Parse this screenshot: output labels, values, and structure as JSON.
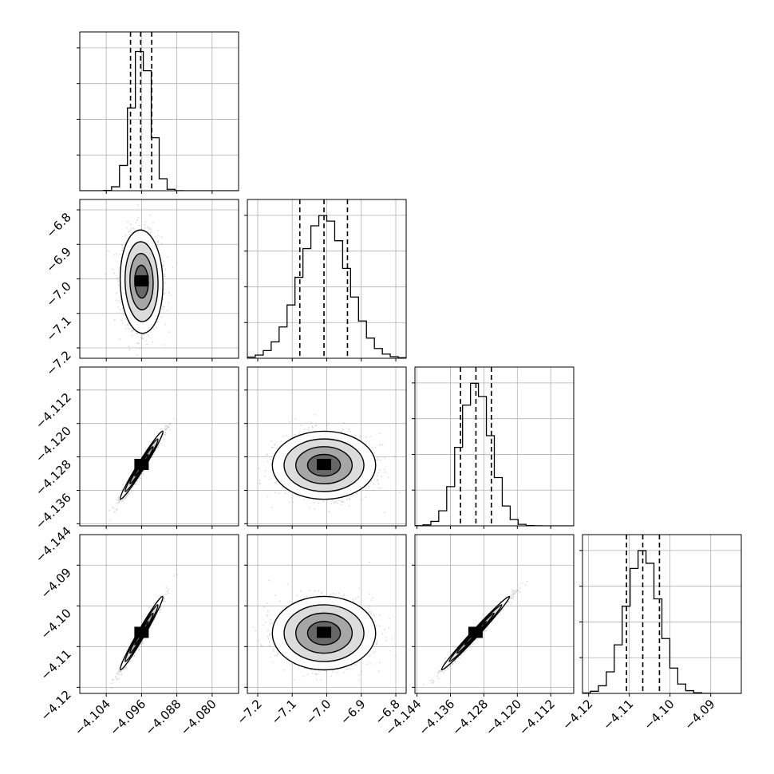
{
  "chart_data": {
    "type": "corner",
    "title": "",
    "grid": true,
    "parameters": 4,
    "colors": {
      "line": "#000000",
      "grid": "#b0b0b0",
      "scatter": "#7f7f7f"
    },
    "axes": [
      {
        "range": [
          -4.11,
          -4.074
        ],
        "ticks": [
          -4.104,
          -4.096,
          -4.088,
          -4.08
        ],
        "tick_labels": [
          "−4.104",
          "−4.096",
          "−4.088",
          "−4.080"
        ]
      },
      {
        "range": [
          -7.23,
          -6.77
        ],
        "ticks": [
          -7.2,
          -7.1,
          -7.0,
          -6.9,
          -6.8
        ],
        "tick_labels": [
          "−7.2",
          "−7.1",
          "−7.0",
          "−6.9",
          "−6.8"
        ]
      },
      {
        "range": [
          -4.1445,
          -4.1065
        ],
        "ticks": [
          -4.144,
          -4.136,
          -4.128,
          -4.12,
          -4.112
        ],
        "tick_labels": [
          "−4.144",
          "−4.136",
          "−4.128",
          "−4.120",
          "−4.112"
        ]
      },
      {
        "range": [
          -4.1215,
          -4.0825
        ],
        "ticks": [
          -4.12,
          -4.11,
          -4.1,
          -4.09
        ],
        "tick_labels": [
          "−4.12",
          "−4.11",
          "−4.10",
          "−4.09"
        ]
      }
    ],
    "marginals": [
      {
        "param": 0,
        "quantiles": [
          -4.0985,
          -4.0962,
          -4.0937
        ],
        "mean": -4.096,
        "sd": 0.0022
      },
      {
        "param": 1,
        "quantiles": [
          -7.078,
          -7.008,
          -6.94
        ],
        "mean": -7.008,
        "sd": 0.068
      },
      {
        "param": 2,
        "quantiles": [
          -4.1336,
          -4.1299,
          -4.1262
        ],
        "mean": -4.13,
        "sd": 0.0037
      },
      {
        "param": 3,
        "quantiles": [
          -4.1107,
          -4.1067,
          -4.1026
        ],
        "mean": -4.1067,
        "sd": 0.0041
      }
    ],
    "correlations": {
      "1,0": -0.05,
      "2,0": 0.98,
      "2,1": 0.0,
      "3,0": 0.98,
      "3,1": 0.0,
      "3,2": 0.99
    }
  }
}
